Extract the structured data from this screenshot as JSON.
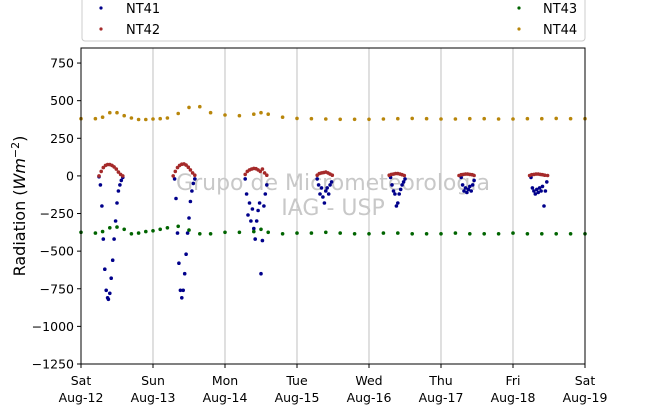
{
  "chart_data": {
    "type": "scatter",
    "xlabel": "",
    "ylabel": "Radiation (Wm^-2)",
    "ylabel_prefix": "Radiation (",
    "ylabel_unit": "Wm",
    "ylabel_exp": "−2",
    "ylabel_suffix": ")",
    "ylim": [
      -1250,
      850
    ],
    "yticks": [
      750,
      500,
      250,
      0,
      -250,
      -500,
      -750,
      -1000,
      -1250
    ],
    "ytick_labels": [
      "750",
      "500",
      "250",
      "0",
      "−250",
      "−500",
      "−750",
      "−1000",
      "−1250"
    ],
    "xlim": [
      0,
      7
    ],
    "xticks": [
      0,
      1,
      2,
      3,
      4,
      5,
      6,
      7
    ],
    "xtick_labels": [
      [
        "Sat",
        "Aug-12"
      ],
      [
        "Sun",
        "Aug-13"
      ],
      [
        "Mon",
        "Aug-14"
      ],
      [
        "Tue",
        "Aug-15"
      ],
      [
        "Wed",
        "Aug-16"
      ],
      [
        "Thu",
        "Aug-17"
      ],
      [
        "Fri",
        "Aug-18"
      ],
      [
        "Sat",
        "Aug-19"
      ]
    ],
    "grid": "vertical",
    "legend_position": "top",
    "watermark": [
      "Grupo de Micrometeorologia",
      "IAG - USP"
    ],
    "series": [
      {
        "name": "NT41",
        "color": "#00008b",
        "points": [
          [
            0.25,
            -5
          ],
          [
            0.27,
            -60
          ],
          [
            0.29,
            -200
          ],
          [
            0.31,
            -420
          ],
          [
            0.33,
            -620
          ],
          [
            0.35,
            -760
          ],
          [
            0.37,
            -810
          ],
          [
            0.38,
            -820
          ],
          [
            0.4,
            -780
          ],
          [
            0.42,
            -680
          ],
          [
            0.44,
            -560
          ],
          [
            0.46,
            -420
          ],
          [
            0.48,
            -300
          ],
          [
            0.5,
            -180
          ],
          [
            0.52,
            -100
          ],
          [
            0.54,
            -60
          ],
          [
            0.56,
            -30
          ],
          [
            0.58,
            -10
          ],
          [
            1.3,
            -20
          ],
          [
            1.32,
            -150
          ],
          [
            1.34,
            -380
          ],
          [
            1.36,
            -580
          ],
          [
            1.38,
            -760
          ],
          [
            1.4,
            -810
          ],
          [
            1.42,
            -760
          ],
          [
            1.44,
            -650
          ],
          [
            1.46,
            -520
          ],
          [
            1.48,
            -380
          ],
          [
            1.5,
            -280
          ],
          [
            1.52,
            -170
          ],
          [
            1.54,
            -100
          ],
          [
            1.56,
            -50
          ],
          [
            1.58,
            -20
          ],
          [
            2.28,
            -20
          ],
          [
            2.3,
            -120
          ],
          [
            2.32,
            -260
          ],
          [
            2.34,
            -180
          ],
          [
            2.36,
            -300
          ],
          [
            2.38,
            -220
          ],
          [
            2.4,
            -350
          ],
          [
            2.42,
            -420
          ],
          [
            2.44,
            -300
          ],
          [
            2.46,
            -230
          ],
          [
            2.48,
            -180
          ],
          [
            2.5,
            -650
          ],
          [
            2.52,
            -430
          ],
          [
            2.54,
            -200
          ],
          [
            2.56,
            -120
          ],
          [
            2.58,
            -60
          ],
          [
            3.28,
            -20
          ],
          [
            3.3,
            -60
          ],
          [
            3.32,
            -120
          ],
          [
            3.34,
            -80
          ],
          [
            3.36,
            -140
          ],
          [
            3.38,
            -180
          ],
          [
            3.4,
            -100
          ],
          [
            3.42,
            -80
          ],
          [
            3.44,
            -120
          ],
          [
            3.46,
            -60
          ],
          [
            3.48,
            -40
          ],
          [
            4.3,
            -10
          ],
          [
            4.32,
            -60
          ],
          [
            4.34,
            -100
          ],
          [
            4.36,
            -120
          ],
          [
            4.38,
            -200
          ],
          [
            4.4,
            -180
          ],
          [
            4.42,
            -120
          ],
          [
            4.44,
            -90
          ],
          [
            4.46,
            -60
          ],
          [
            4.48,
            -40
          ],
          [
            4.5,
            -20
          ],
          [
            5.28,
            -10
          ],
          [
            5.3,
            -60
          ],
          [
            5.32,
            -100
          ],
          [
            5.34,
            -80
          ],
          [
            5.36,
            -110
          ],
          [
            5.38,
            -90
          ],
          [
            5.4,
            -70
          ],
          [
            5.42,
            -100
          ],
          [
            5.44,
            -60
          ],
          [
            5.46,
            -30
          ],
          [
            6.25,
            -10
          ],
          [
            6.27,
            -80
          ],
          [
            6.29,
            -100
          ],
          [
            6.31,
            -120
          ],
          [
            6.33,
            -90
          ],
          [
            6.35,
            -110
          ],
          [
            6.37,
            -80
          ],
          [
            6.39,
            -100
          ],
          [
            6.41,
            -70
          ],
          [
            6.43,
            -200
          ],
          [
            6.45,
            -100
          ],
          [
            6.47,
            -40
          ]
        ]
      },
      {
        "name": "NT42",
        "color": "#a52a2a",
        "points": [
          [
            0.25,
            0
          ],
          [
            0.28,
            30
          ],
          [
            0.31,
            55
          ],
          [
            0.34,
            70
          ],
          [
            0.37,
            75
          ],
          [
            0.4,
            75
          ],
          [
            0.43,
            70
          ],
          [
            0.46,
            60
          ],
          [
            0.49,
            45
          ],
          [
            0.52,
            25
          ],
          [
            0.55,
            10
          ],
          [
            0.58,
            0
          ],
          [
            1.28,
            0
          ],
          [
            1.31,
            30
          ],
          [
            1.34,
            55
          ],
          [
            1.37,
            70
          ],
          [
            1.4,
            78
          ],
          [
            1.43,
            80
          ],
          [
            1.46,
            72
          ],
          [
            1.49,
            58
          ],
          [
            1.52,
            40
          ],
          [
            1.55,
            20
          ],
          [
            1.58,
            5
          ],
          [
            2.28,
            10
          ],
          [
            2.31,
            30
          ],
          [
            2.34,
            40
          ],
          [
            2.37,
            45
          ],
          [
            2.4,
            50
          ],
          [
            2.43,
            48
          ],
          [
            2.46,
            40
          ],
          [
            2.49,
            30
          ],
          [
            2.52,
            45
          ],
          [
            2.55,
            20
          ],
          [
            2.58,
            5
          ],
          [
            3.28,
            5
          ],
          [
            3.31,
            15
          ],
          [
            3.34,
            20
          ],
          [
            3.37,
            22
          ],
          [
            3.4,
            25
          ],
          [
            3.43,
            20
          ],
          [
            3.46,
            12
          ],
          [
            3.49,
            5
          ],
          [
            4.28,
            5
          ],
          [
            4.31,
            10
          ],
          [
            4.34,
            12
          ],
          [
            4.37,
            15
          ],
          [
            4.4,
            15
          ],
          [
            4.43,
            12
          ],
          [
            4.46,
            8
          ],
          [
            4.49,
            3
          ],
          [
            5.25,
            3
          ],
          [
            5.28,
            8
          ],
          [
            5.31,
            10
          ],
          [
            5.34,
            12
          ],
          [
            5.37,
            12
          ],
          [
            5.4,
            10
          ],
          [
            5.43,
            8
          ],
          [
            5.46,
            3
          ],
          [
            6.23,
            3
          ],
          [
            6.26,
            8
          ],
          [
            6.29,
            10
          ],
          [
            6.32,
            12
          ],
          [
            6.35,
            12
          ],
          [
            6.38,
            10
          ],
          [
            6.41,
            8
          ],
          [
            6.44,
            5
          ],
          [
            6.48,
            3
          ]
        ]
      },
      {
        "name": "NT43",
        "color": "#006400",
        "points": [
          [
            0.0,
            -375
          ],
          [
            0.2,
            -380
          ],
          [
            0.3,
            -370
          ],
          [
            0.4,
            -345
          ],
          [
            0.5,
            -340
          ],
          [
            0.6,
            -355
          ],
          [
            0.7,
            -385
          ],
          [
            0.8,
            -380
          ],
          [
            0.9,
            -370
          ],
          [
            1.0,
            -365
          ],
          [
            1.1,
            -355
          ],
          [
            1.2,
            -345
          ],
          [
            1.35,
            -335
          ],
          [
            1.5,
            -360
          ],
          [
            1.65,
            -385
          ],
          [
            1.8,
            -385
          ],
          [
            2.0,
            -375
          ],
          [
            2.2,
            -375
          ],
          [
            2.4,
            -370
          ],
          [
            2.5,
            -355
          ],
          [
            2.6,
            -375
          ],
          [
            2.8,
            -385
          ],
          [
            3.0,
            -380
          ],
          [
            3.2,
            -380
          ],
          [
            3.4,
            -375
          ],
          [
            3.6,
            -380
          ],
          [
            3.8,
            -385
          ],
          [
            4.0,
            -385
          ],
          [
            4.2,
            -380
          ],
          [
            4.4,
            -380
          ],
          [
            4.6,
            -385
          ],
          [
            4.8,
            -385
          ],
          [
            5.0,
            -385
          ],
          [
            5.2,
            -380
          ],
          [
            5.4,
            -385
          ],
          [
            5.6,
            -385
          ],
          [
            5.8,
            -385
          ],
          [
            6.0,
            -380
          ],
          [
            6.2,
            -385
          ],
          [
            6.4,
            -385
          ],
          [
            6.6,
            -385
          ],
          [
            6.8,
            -385
          ],
          [
            7.0,
            -385
          ]
        ]
      },
      {
        "name": "NT44",
        "color": "#b8860b",
        "points": [
          [
            0.0,
            380
          ],
          [
            0.2,
            380
          ],
          [
            0.3,
            390
          ],
          [
            0.4,
            420
          ],
          [
            0.5,
            420
          ],
          [
            0.6,
            400
          ],
          [
            0.7,
            385
          ],
          [
            0.8,
            375
          ],
          [
            0.9,
            375
          ],
          [
            1.0,
            378
          ],
          [
            1.1,
            380
          ],
          [
            1.2,
            385
          ],
          [
            1.35,
            415
          ],
          [
            1.5,
            455
          ],
          [
            1.65,
            460
          ],
          [
            1.8,
            420
          ],
          [
            2.0,
            405
          ],
          [
            2.2,
            400
          ],
          [
            2.4,
            410
          ],
          [
            2.5,
            420
          ],
          [
            2.6,
            410
          ],
          [
            2.8,
            390
          ],
          [
            3.0,
            382
          ],
          [
            3.2,
            380
          ],
          [
            3.4,
            378
          ],
          [
            3.6,
            376
          ],
          [
            3.8,
            376
          ],
          [
            4.0,
            376
          ],
          [
            4.2,
            378
          ],
          [
            4.4,
            380
          ],
          [
            4.6,
            382
          ],
          [
            4.8,
            380
          ],
          [
            5.0,
            378
          ],
          [
            5.2,
            378
          ],
          [
            5.4,
            380
          ],
          [
            5.6,
            380
          ],
          [
            5.8,
            378
          ],
          [
            6.0,
            378
          ],
          [
            6.2,
            380
          ],
          [
            6.4,
            380
          ],
          [
            6.6,
            382
          ],
          [
            6.8,
            380
          ],
          [
            7.0,
            380
          ]
        ]
      }
    ]
  }
}
